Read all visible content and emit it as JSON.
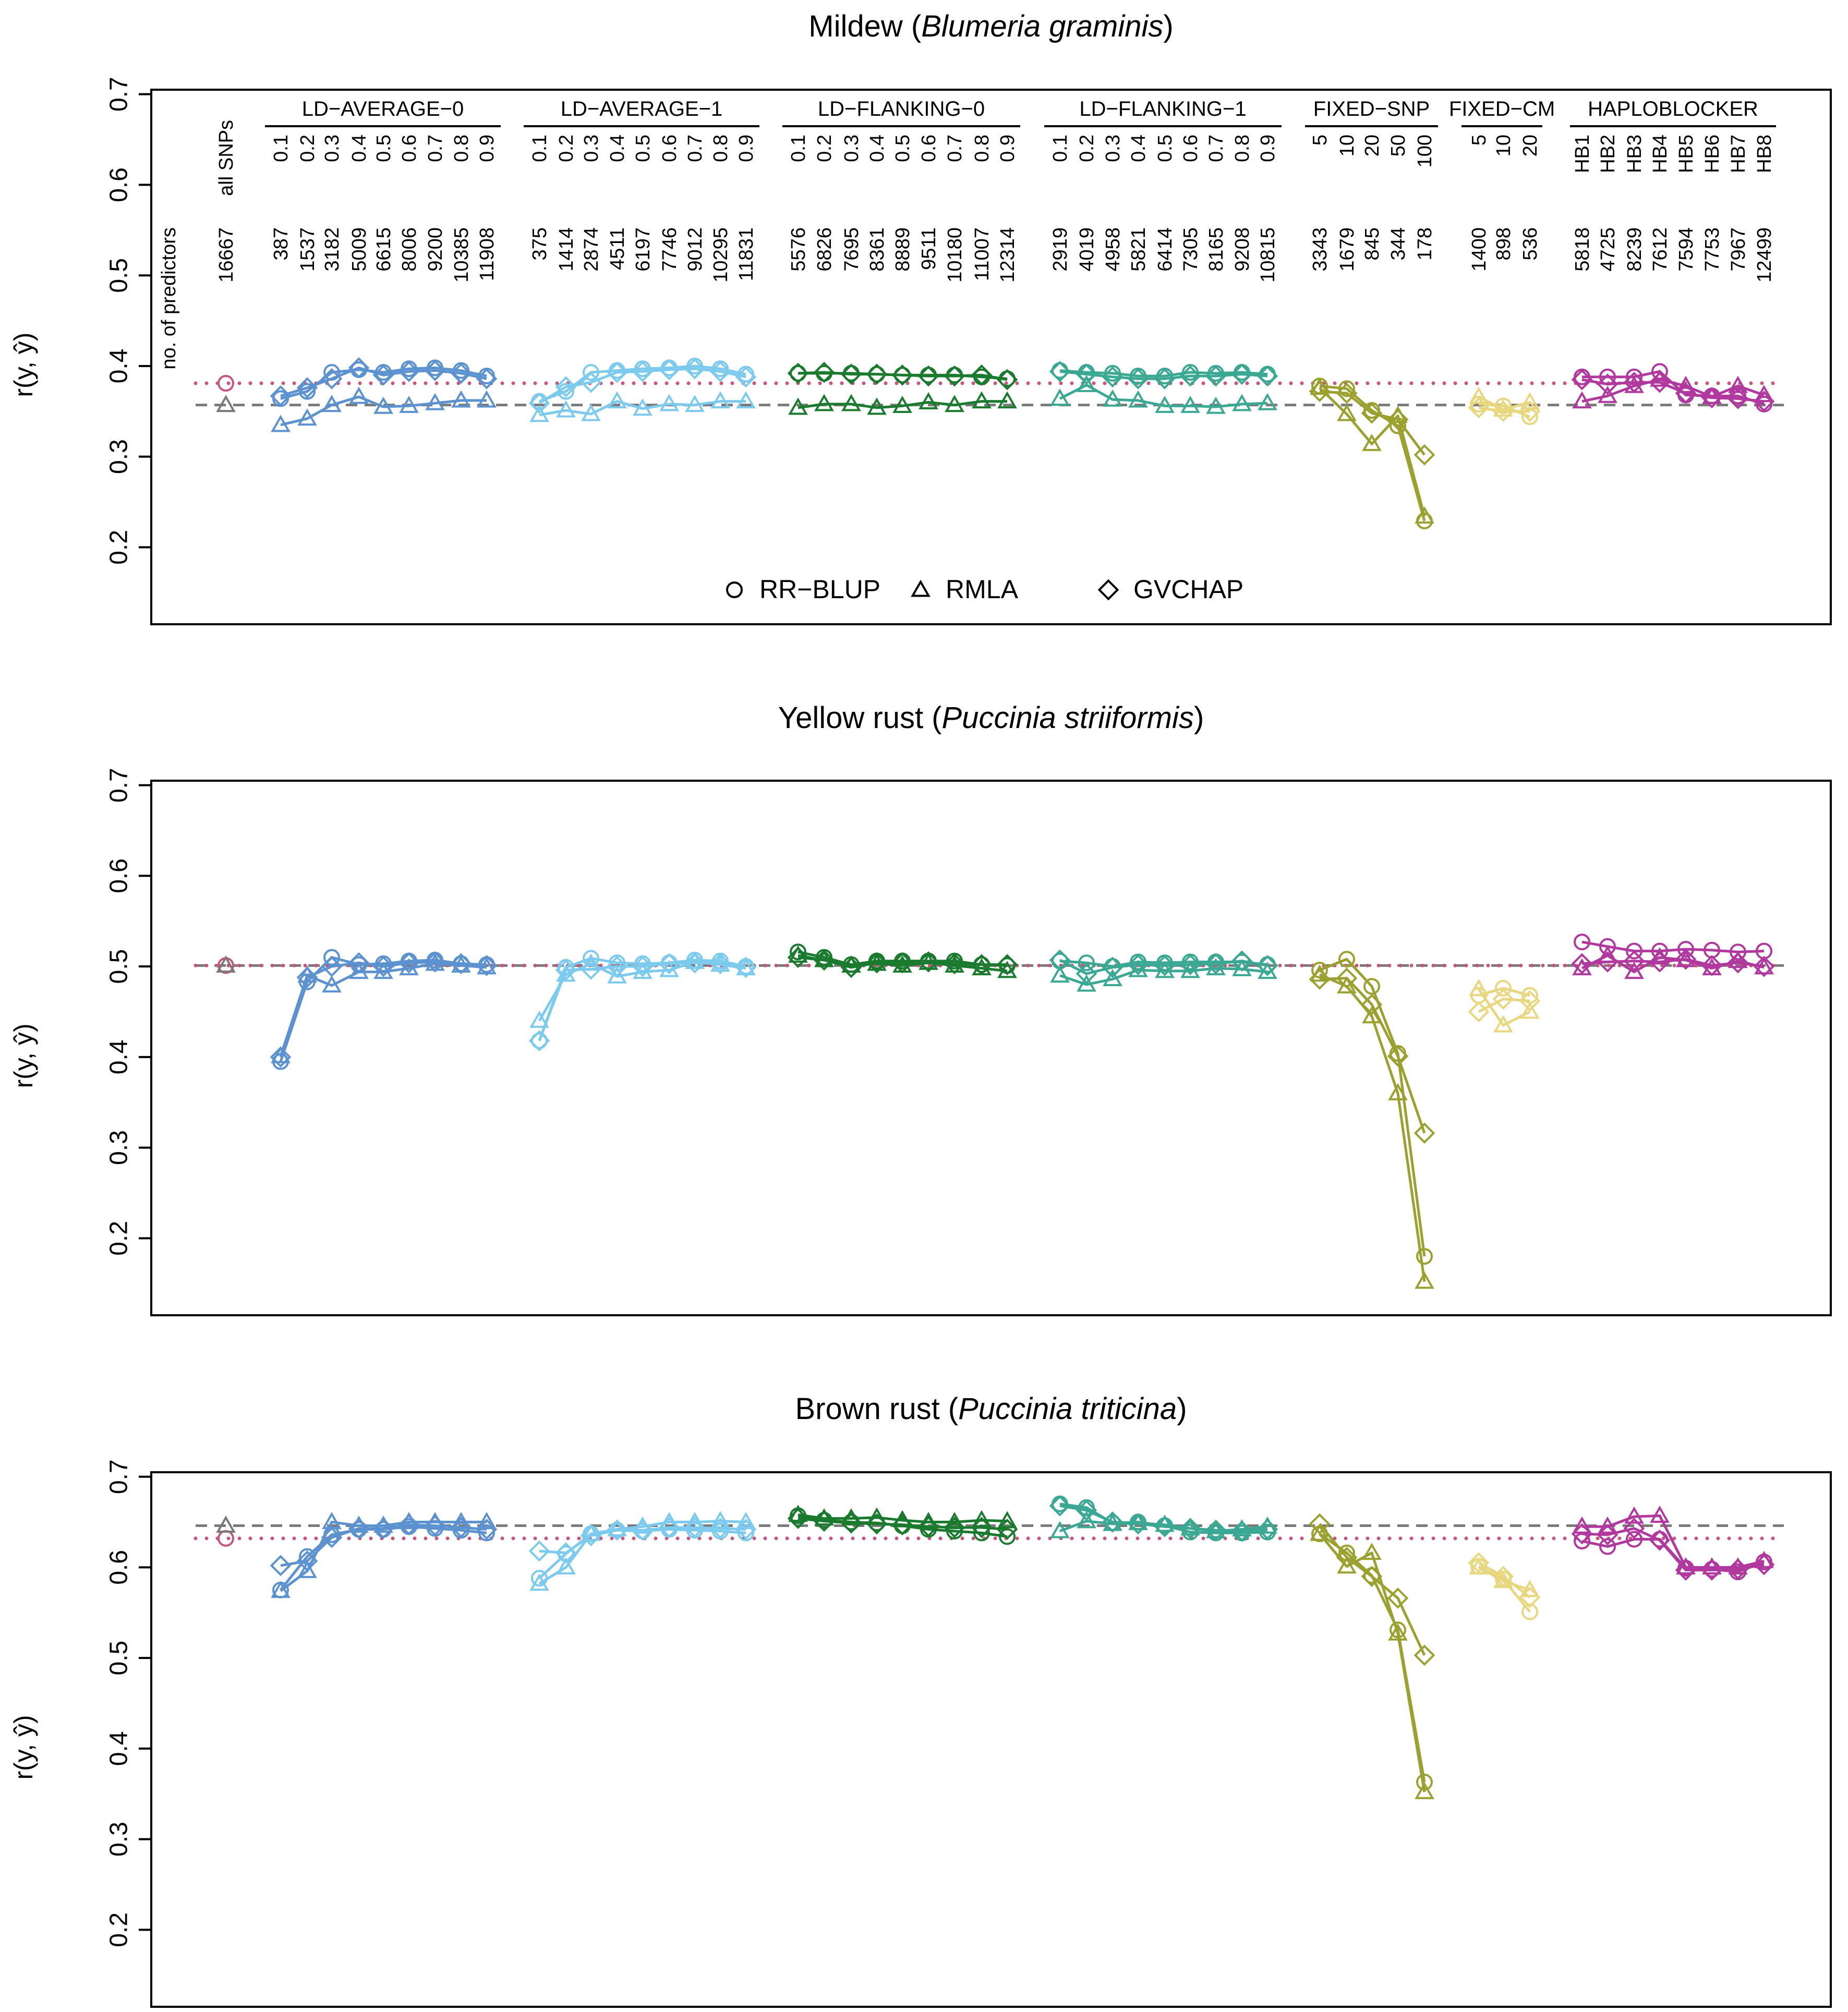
{
  "axis_label": "r(y, ŷ)",
  "header": {
    "all_snps_label": "all SNPs",
    "predictors_label": "no. of predictors",
    "all_snps_count": "16667"
  },
  "legend": [
    {
      "marker": "circle",
      "label": "RR−BLUP"
    },
    {
      "marker": "triangle",
      "label": "RMLA"
    },
    {
      "marker": "diamond",
      "label": "GVCHAP"
    }
  ],
  "groups": [
    {
      "name": "LD−AVERAGE−0",
      "color": "#5b92cf",
      "params": [
        "0.1",
        "0.2",
        "0.3",
        "0.4",
        "0.5",
        "0.6",
        "0.7",
        "0.8",
        "0.9"
      ],
      "counts": [
        "387",
        "1537",
        "3182",
        "5009",
        "6615",
        "8006",
        "9200",
        "10385",
        "11908"
      ]
    },
    {
      "name": "LD−AVERAGE−1",
      "color": "#7ccbee",
      "params": [
        "0.1",
        "0.2",
        "0.3",
        "0.4",
        "0.5",
        "0.6",
        "0.7",
        "0.8",
        "0.9"
      ],
      "counts": [
        "375",
        "1414",
        "2874",
        "4511",
        "6197",
        "7746",
        "9012",
        "10295",
        "11831"
      ]
    },
    {
      "name": "LD−FLANKING−0",
      "color": "#1a7a2e",
      "params": [
        "0.1",
        "0.2",
        "0.3",
        "0.4",
        "0.5",
        "0.6",
        "0.7",
        "0.8",
        "0.9"
      ],
      "counts": [
        "5576",
        "6826",
        "7695",
        "8361",
        "8889",
        "9511",
        "10180",
        "11007",
        "12314"
      ]
    },
    {
      "name": "LD−FLANKING−1",
      "color": "#3ba894",
      "params": [
        "0.1",
        "0.2",
        "0.3",
        "0.4",
        "0.5",
        "0.6",
        "0.7",
        "0.8",
        "0.9"
      ],
      "counts": [
        "2919",
        "4019",
        "4958",
        "5821",
        "6414",
        "7305",
        "8165",
        "9208",
        "10815"
      ]
    },
    {
      "name": "FIXED−SNP",
      "color": "#9ba12e",
      "params": [
        "5",
        "10",
        "20",
        "50",
        "100"
      ],
      "counts": [
        "3343",
        "1679",
        "845",
        "344",
        "178"
      ]
    },
    {
      "name": "FIXED−CM",
      "color": "#e8d77e",
      "params": [
        "5",
        "10",
        "20"
      ],
      "counts": [
        "1400",
        "898",
        "536"
      ]
    },
    {
      "name": "HAPLOBLOCKER",
      "color": "#b0389f",
      "params": [
        "HB1",
        "HB2",
        "HB3",
        "HB4",
        "HB5",
        "HB6",
        "HB7",
        "HB8"
      ],
      "counts": [
        "5818",
        "4725",
        "8239",
        "7612",
        "7594",
        "7753",
        "7967",
        "12499"
      ]
    }
  ],
  "chart_data": [
    {
      "type": "line",
      "title_prefix": "Mildew (",
      "title_species": "Blumeria graminis",
      "title_suffix": ")",
      "ylabel": "r(y, ŷ)",
      "ylim": [
        0.115,
        0.705
      ],
      "yticks": [
        "0.2",
        "0.3",
        "0.4",
        "0.5",
        "0.6",
        "0.7"
      ],
      "baseline": {
        "rrblup": 0.381,
        "rmla": 0.357
      },
      "series": {
        "rrblup": [
          [
            0.364,
            0.372,
            0.393,
            0.396,
            0.393,
            0.397,
            0.398,
            0.395,
            0.389
          ],
          [
            0.361,
            0.372,
            0.393,
            0.395,
            0.397,
            0.398,
            0.4,
            0.397,
            0.391
          ],
          [
            0.392,
            0.392,
            0.392,
            0.391,
            0.39,
            0.39,
            0.39,
            0.388,
            0.386
          ],
          [
            0.395,
            0.393,
            0.392,
            0.389,
            0.389,
            0.393,
            0.392,
            0.393,
            0.391
          ],
          [
            0.378,
            0.375,
            0.351,
            0.334,
            0.229
          ],
          [
            0.358,
            0.356,
            0.344
          ],
          [
            0.388,
            0.388,
            0.388,
            0.394,
            0.368,
            0.367,
            0.367,
            0.358
          ]
        ],
        "rmla": [
          [
            0.335,
            0.342,
            0.357,
            0.366,
            0.355,
            0.356,
            0.359,
            0.362,
            0.362
          ],
          [
            0.346,
            0.351,
            0.347,
            0.361,
            0.353,
            0.358,
            0.357,
            0.361,
            0.361
          ],
          [
            0.354,
            0.358,
            0.358,
            0.354,
            0.356,
            0.36,
            0.357,
            0.361,
            0.361
          ],
          [
            0.364,
            0.379,
            0.363,
            0.362,
            0.356,
            0.356,
            0.355,
            0.358,
            0.359
          ],
          [
            0.376,
            0.347,
            0.314,
            0.345,
            0.234
          ],
          [
            0.366,
            0.352,
            0.36
          ],
          [
            0.361,
            0.367,
            0.378,
            0.385,
            0.378,
            0.366,
            0.378,
            0.368
          ]
        ],
        "gvchap": [
          [
            0.367,
            0.376,
            0.386,
            0.398,
            0.39,
            0.394,
            0.395,
            0.392,
            0.386
          ],
          [
            0.359,
            0.377,
            0.382,
            0.393,
            0.394,
            0.396,
            0.397,
            0.394,
            0.388
          ],
          [
            0.392,
            0.393,
            0.391,
            0.391,
            0.39,
            0.389,
            0.389,
            0.39,
            0.385
          ],
          [
            0.394,
            0.391,
            0.388,
            0.386,
            0.386,
            0.389,
            0.389,
            0.391,
            0.389
          ],
          [
            0.372,
            0.37,
            0.348,
            0.341,
            0.302
          ],
          [
            0.354,
            0.35,
            0.35
          ],
          [
            0.385,
            0.38,
            0.382,
            0.382,
            0.37,
            0.365,
            0.364,
            0.361
          ]
        ]
      }
    },
    {
      "type": "line",
      "title_prefix": "Yellow rust (",
      "title_species": "Puccinia striiformis",
      "title_suffix": ")",
      "ylabel": "r(y, ŷ)",
      "ylim": [
        0.115,
        0.705
      ],
      "yticks": [
        "0.2",
        "0.3",
        "0.4",
        "0.5",
        "0.6",
        "0.7"
      ],
      "baseline": {
        "rrblup": 0.501,
        "rmla": 0.501
      },
      "series": {
        "rrblup": [
          [
            0.395,
            0.483,
            0.51,
            0.502,
            0.503,
            0.506,
            0.507,
            0.503,
            0.502
          ],
          [
            0.418,
            0.499,
            0.509,
            0.504,
            0.503,
            0.504,
            0.507,
            0.506,
            0.5
          ],
          [
            0.516,
            0.51,
            0.502,
            0.506,
            0.506,
            0.506,
            0.506,
            0.502,
            0.501
          ],
          [
            0.506,
            0.504,
            0.5,
            0.505,
            0.504,
            0.505,
            0.505,
            0.505,
            0.502
          ],
          [
            0.496,
            0.508,
            0.478,
            0.404,
            0.18
          ],
          [
            0.468,
            0.476,
            0.468
          ],
          [
            0.527,
            0.522,
            0.517,
            0.517,
            0.519,
            0.518,
            0.516,
            0.517
          ]
        ],
        "rmla": [
          [
            0.401,
            0.49,
            0.479,
            0.494,
            0.494,
            0.498,
            0.503,
            0.501,
            0.499
          ],
          [
            0.44,
            0.491,
            0.503,
            0.489,
            0.494,
            0.496,
            0.505,
            0.502,
            0.498
          ],
          [
            0.512,
            0.507,
            0.501,
            0.503,
            0.501,
            0.504,
            0.501,
            0.498,
            0.495
          ],
          [
            0.49,
            0.48,
            0.486,
            0.496,
            0.495,
            0.495,
            0.498,
            0.497,
            0.494
          ],
          [
            0.491,
            0.478,
            0.445,
            0.36,
            0.152
          ],
          [
            0.475,
            0.435,
            0.45
          ],
          [
            0.498,
            0.512,
            0.494,
            0.51,
            0.507,
            0.498,
            0.506,
            0.499
          ]
        ],
        "gvchap": [
          [
            0.4,
            0.488,
            0.5,
            0.504,
            0.5,
            0.504,
            0.505,
            0.503,
            0.501
          ],
          [
            0.418,
            0.496,
            0.497,
            0.5,
            0.5,
            0.503,
            0.504,
            0.503,
            0.499
          ],
          [
            0.51,
            0.507,
            0.499,
            0.504,
            0.504,
            0.505,
            0.503,
            0.502,
            0.502
          ],
          [
            0.507,
            0.492,
            0.499,
            0.502,
            0.501,
            0.502,
            0.503,
            0.506,
            0.501
          ],
          [
            0.486,
            0.487,
            0.458,
            0.401,
            0.316
          ],
          [
            0.45,
            0.464,
            0.462
          ],
          [
            0.503,
            0.505,
            0.506,
            0.505,
            0.508,
            0.501,
            0.504,
            0.5
          ]
        ]
      }
    },
    {
      "type": "line",
      "title_prefix": "Brown rust (",
      "title_species": "Puccinia triticina",
      "title_suffix": ")",
      "ylabel": "r(y, ŷ)",
      "ylim": [
        0.115,
        0.705
      ],
      "yticks": [
        "0.2",
        "0.3",
        "0.4",
        "0.5",
        "0.6",
        "0.7"
      ],
      "baseline": {
        "rrblup": 0.632,
        "rmla": 0.646
      },
      "series": {
        "rrblup": [
          [
            0.575,
            0.612,
            0.636,
            0.642,
            0.642,
            0.645,
            0.643,
            0.641,
            0.638
          ],
          [
            0.588,
            0.615,
            0.637,
            0.641,
            0.64,
            0.642,
            0.641,
            0.64,
            0.638
          ],
          [
            0.657,
            0.652,
            0.65,
            0.649,
            0.646,
            0.642,
            0.64,
            0.638,
            0.634
          ],
          [
            0.67,
            0.666,
            0.649,
            0.65,
            0.646,
            0.639,
            0.638,
            0.638,
            0.639
          ],
          [
            0.637,
            0.616,
            0.591,
            0.531,
            0.363
          ],
          [
            0.601,
            0.587,
            0.551
          ],
          [
            0.629,
            0.623,
            0.631,
            0.631,
            0.599,
            0.598,
            0.595,
            0.606
          ]
        ],
        "rmla": [
          [
            0.574,
            0.596,
            0.65,
            0.646,
            0.646,
            0.65,
            0.65,
            0.65,
            0.65
          ],
          [
            0.582,
            0.6,
            0.637,
            0.642,
            0.645,
            0.65,
            0.65,
            0.651,
            0.65
          ],
          [
            0.658,
            0.654,
            0.654,
            0.655,
            0.652,
            0.65,
            0.65,
            0.652,
            0.651
          ],
          [
            0.64,
            0.651,
            0.648,
            0.649,
            0.647,
            0.643,
            0.64,
            0.642,
            0.645
          ],
          [
            0.637,
            0.601,
            0.616,
            0.527,
            0.352
          ],
          [
            0.6,
            0.585,
            0.575
          ],
          [
            0.645,
            0.645,
            0.656,
            0.657,
            0.6,
            0.6,
            0.6,
            0.607
          ]
        ],
        "gvchap": [
          [
            0.602,
            0.607,
            0.633,
            0.643,
            0.643,
            0.647,
            0.646,
            0.644,
            0.642
          ],
          [
            0.618,
            0.616,
            0.635,
            0.641,
            0.641,
            0.644,
            0.644,
            0.643,
            0.642
          ],
          [
            0.654,
            0.651,
            0.649,
            0.648,
            0.647,
            0.645,
            0.644,
            0.644,
            0.642
          ],
          [
            0.668,
            0.663,
            0.65,
            0.648,
            0.645,
            0.643,
            0.641,
            0.64,
            0.642
          ],
          [
            0.648,
            0.611,
            0.59,
            0.566,
            0.503
          ],
          [
            0.605,
            0.59,
            0.567
          ],
          [
            0.637,
            0.636,
            0.643,
            0.63,
            0.597,
            0.597,
            0.598,
            0.603
          ]
        ]
      }
    }
  ]
}
